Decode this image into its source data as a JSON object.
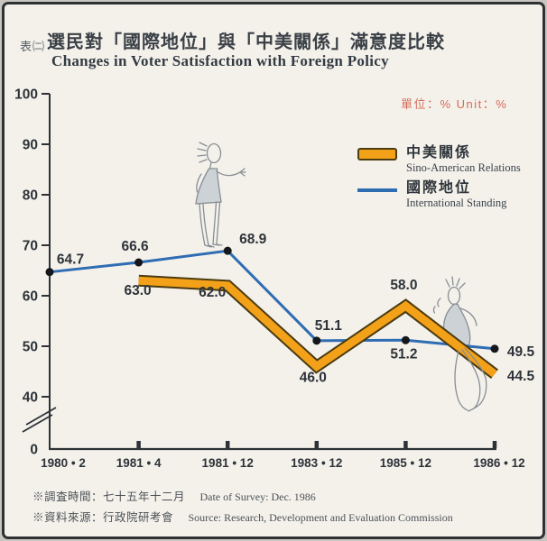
{
  "header": {
    "tag": "表㈡",
    "title_zh": "選民對「國際地位」與「中美關係」滿意度比較",
    "title_en": "Changes in Voter Satisfaction with Foreign Policy",
    "unit_note": "單位：%  Unit：%"
  },
  "legend": {
    "items": [
      {
        "zh": "中美關係",
        "en": "Sino-American Relations",
        "swatch": "orange-band",
        "color": "#f3a118"
      },
      {
        "zh": "國際地位",
        "en": "International Standing",
        "swatch": "blue-line",
        "color": "#2f6db3"
      }
    ]
  },
  "footnotes": {
    "rows": [
      {
        "zh": "※調査時間：七十五年十二月",
        "en": "Date of Survey: Dec. 1986"
      },
      {
        "zh": "※資料來源：行政院研考會",
        "en": "Source: Research, Development and Evaluation Commission"
      }
    ]
  },
  "chart_data": {
    "type": "line",
    "title": "選民對「國際地位」與「中美關係」滿意度比較 / Changes in Voter Satisfaction with Foreign Policy",
    "unit": "%",
    "x_categories": [
      "1980 • 2",
      "1981 • 4",
      "1981 • 12",
      "1983 • 12",
      "1985 • 12",
      "1986 • 12"
    ],
    "series": [
      {
        "name": "中美關係 Sino-American Relations",
        "style": "thick-band",
        "color": "#f3a118",
        "outline": "#4a3a10",
        "values": [
          null,
          63.0,
          62.0,
          46.0,
          58.0,
          44.5
        ]
      },
      {
        "name": "國際地位 International Standing",
        "style": "line-with-dots",
        "color": "#2f6db3",
        "dot_color": "#14181c",
        "values": [
          64.7,
          66.6,
          68.9,
          51.1,
          51.2,
          49.5
        ]
      }
    ],
    "yticks": [
      0,
      40,
      50,
      60,
      70,
      80,
      90,
      100
    ],
    "ylim": [
      0,
      100
    ],
    "axis_break_between": [
      0,
      40
    ],
    "grid": false,
    "legend_position": "top-right"
  }
}
